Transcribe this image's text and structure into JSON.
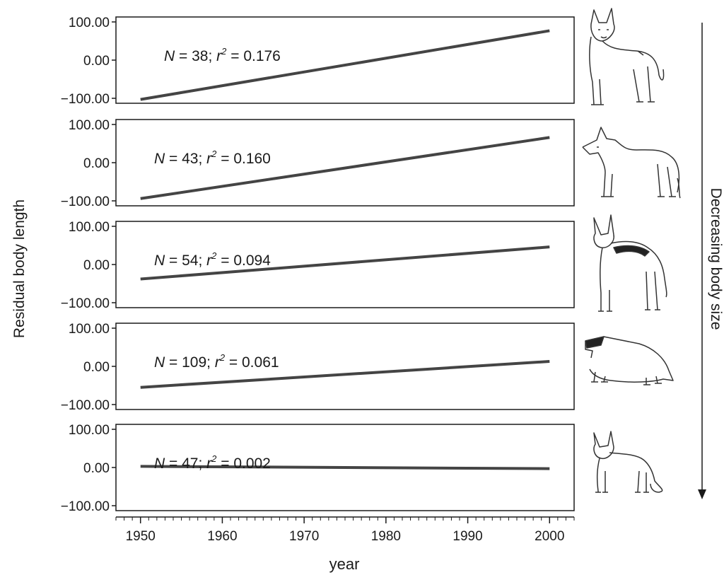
{
  "figure": {
    "ylabel": "Residual body length",
    "xlabel": "year",
    "side_label": "Decreasing body size"
  },
  "chart_data": [
    {
      "type": "line",
      "x": [
        1950,
        2000
      ],
      "xlim": [
        1947,
        2003
      ],
      "ylim": [
        -115,
        115
      ],
      "xticks": [
        "1950",
        "1960",
        "1970",
        "1980",
        "1990",
        "2000"
      ],
      "yticks": [
        "100.00",
        "0.00",
        "−100.00"
      ],
      "annotation": {
        "N": "38",
        "r2": "0.176"
      },
      "series": [
        {
          "values": [
            -103,
            77
          ]
        }
      ],
      "animal_icon": "hyena-icon"
    },
    {
      "type": "line",
      "x": [
        1950,
        2000
      ],
      "xlim": [
        1947,
        2003
      ],
      "ylim": [
        -115,
        115
      ],
      "xticks": [
        "1950",
        "1960",
        "1970",
        "1980",
        "1990",
        "2000"
      ],
      "yticks": [
        "100.00",
        "0.00",
        "−100.00"
      ],
      "annotation": {
        "N": "43",
        "r2": "0.160"
      },
      "series": [
        {
          "values": [
            -94,
            66
          ]
        }
      ],
      "animal_icon": "wolf-icon"
    },
    {
      "type": "line",
      "x": [
        1950,
        2000
      ],
      "xlim": [
        1947,
        2003
      ],
      "ylim": [
        -115,
        115
      ],
      "xticks": [
        "1950",
        "1960",
        "1970",
        "1980",
        "1990",
        "2000"
      ],
      "yticks": [
        "100.00",
        "0.00",
        "−100.00"
      ],
      "annotation": {
        "N": "54",
        "r2": "0.094"
      },
      "series": [
        {
          "values": [
            -38,
            46
          ]
        }
      ],
      "animal_icon": "jackal-icon"
    },
    {
      "type": "line",
      "x": [
        1950,
        2000
      ],
      "xlim": [
        1947,
        2003
      ],
      "ylim": [
        -115,
        115
      ],
      "xticks": [
        "1950",
        "1960",
        "1970",
        "1980",
        "1990",
        "2000"
      ],
      "yticks": [
        "100.00",
        "0.00",
        "−100.00"
      ],
      "annotation": {
        "N": "109",
        "r2": "0.061"
      },
      "series": [
        {
          "values": [
            -55,
            13
          ]
        }
      ],
      "animal_icon": "honey-badger-icon"
    },
    {
      "type": "line",
      "x": [
        1950,
        2000
      ],
      "xlim": [
        1947,
        2003
      ],
      "ylim": [
        -115,
        115
      ],
      "xticks": [
        "1950",
        "1960",
        "1970",
        "1980",
        "1990",
        "2000"
      ],
      "yticks": [
        "100.00",
        "0.00",
        "−100.00"
      ],
      "annotation": {
        "N": "47",
        "r2": "0.002"
      },
      "series": [
        {
          "values": [
            3,
            -3
          ]
        }
      ],
      "animal_icon": "fox-icon"
    }
  ]
}
